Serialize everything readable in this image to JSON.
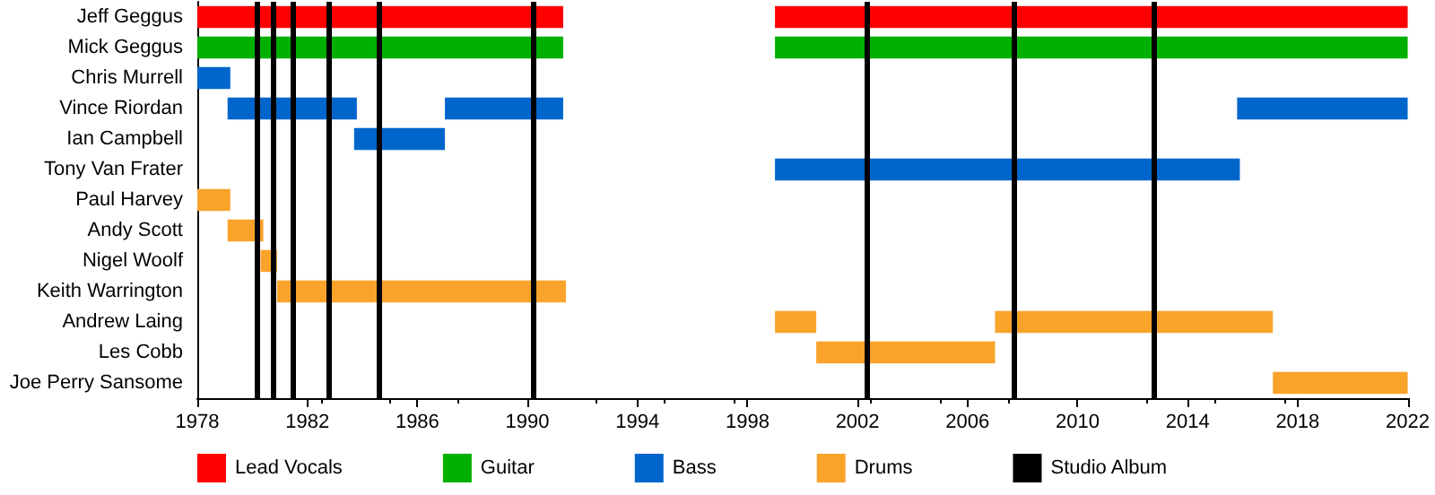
{
  "chart_data": {
    "type": "bar",
    "orientation": "horizontal",
    "categories": [
      "Jeff Geggus",
      "Mick Geggus",
      "Chris Murrell",
      "Vince Riordan",
      "Ian Campbell",
      "Tony Van Frater",
      "Paul Harvey",
      "Andy Scott",
      "Nigel Woolf",
      "Keith Warrington",
      "Andrew Laing",
      "Les Cobb",
      "Joe Perry Sansome"
    ],
    "series": [
      {
        "name": "Lead Vocals",
        "color": "#ff0000",
        "values": [
          13.3,
          null,
          null,
          null,
          null,
          null,
          null,
          null,
          null,
          null,
          null,
          null,
          null
        ],
        "base": [
          1978,
          null,
          null,
          null,
          null,
          null,
          null,
          null,
          null,
          null,
          null,
          null,
          null
        ]
      },
      {
        "color": "#ff0000",
        "values": [
          23,
          null,
          null,
          null,
          null,
          null,
          null,
          null,
          null,
          null,
          null,
          null,
          null
        ],
        "base": [
          1999,
          null,
          null,
          null,
          null,
          null,
          null,
          null,
          null,
          null,
          null,
          null,
          null
        ]
      },
      {
        "name": "Guitar",
        "color": "#00b000",
        "values": [
          null,
          13.3,
          null,
          null,
          null,
          null,
          null,
          null,
          null,
          null,
          null,
          null,
          null
        ],
        "base": [
          null,
          1978,
          null,
          null,
          null,
          null,
          null,
          null,
          null,
          null,
          null,
          null,
          null
        ]
      },
      {
        "color": "#00b000",
        "values": [
          null,
          23,
          null,
          null,
          null,
          null,
          null,
          null,
          null,
          null,
          null,
          null,
          null
        ],
        "base": [
          null,
          1999,
          null,
          null,
          null,
          null,
          null,
          null,
          null,
          null,
          null,
          null,
          null
        ]
      },
      {
        "name": "Bass",
        "color": "#0066cc",
        "values": [
          null,
          null,
          1.2,
          4.7,
          3.3,
          16.9,
          null,
          null,
          null,
          null,
          null,
          null,
          null
        ],
        "base": [
          null,
          null,
          1978,
          1979.1,
          1983.7,
          1999,
          null,
          null,
          null,
          null,
          null,
          null,
          null
        ]
      },
      {
        "color": "#0066cc",
        "values": [
          null,
          null,
          null,
          4.3,
          null,
          null,
          null,
          null,
          null,
          null,
          null,
          null,
          null
        ],
        "base": [
          null,
          null,
          null,
          1987,
          null,
          null,
          null,
          null,
          null,
          null,
          null,
          null,
          null
        ]
      },
      {
        "color": "#0066cc",
        "values": [
          null,
          null,
          null,
          6.2,
          null,
          null,
          null,
          null,
          null,
          null,
          null,
          null,
          null
        ],
        "base": [
          null,
          null,
          null,
          2015.8,
          null,
          null,
          null,
          null,
          null,
          null,
          null,
          null,
          null
        ]
      },
      {
        "name": "Drums",
        "color": "#faa32b",
        "values": [
          null,
          null,
          null,
          null,
          null,
          null,
          1.2,
          1.3,
          0.6,
          10.5,
          1.5,
          6.5,
          4.9
        ],
        "base": [
          null,
          null,
          null,
          null,
          null,
          null,
          1978,
          1979.1,
          1980.3,
          1980.9,
          1999,
          2000.5,
          2017.1
        ]
      },
      {
        "color": "#faa32b",
        "values": [
          null,
          null,
          null,
          null,
          null,
          null,
          null,
          null,
          null,
          null,
          10.1,
          null,
          null
        ],
        "base": [
          null,
          null,
          null,
          null,
          null,
          null,
          null,
          null,
          null,
          null,
          2007,
          null,
          null
        ]
      }
    ],
    "ref_lines": [
      {
        "axis": "x",
        "value": 1980.15,
        "label": "Studio Album",
        "color": "#000000"
      },
      {
        "axis": "x",
        "value": 1980.75,
        "color": "#000000"
      },
      {
        "axis": "x",
        "value": 1981.45,
        "color": "#000000"
      },
      {
        "axis": "x",
        "value": 1982.8,
        "color": "#000000"
      },
      {
        "axis": "x",
        "value": 1984.6,
        "color": "#000000"
      },
      {
        "axis": "x",
        "value": 1990.2,
        "color": "#000000"
      },
      {
        "axis": "x",
        "value": 2002.35,
        "color": "#000000"
      },
      {
        "axis": "x",
        "value": 2007.7,
        "color": "#000000"
      },
      {
        "axis": "x",
        "value": 2012.8,
        "color": "#000000"
      }
    ],
    "xlim": [
      1978,
      2022
    ],
    "xticks": [
      1978,
      1982,
      1986,
      1990,
      1994,
      1998,
      2002,
      2006,
      2010,
      2014,
      2018,
      2022
    ],
    "grid": false,
    "legend": "bottom"
  }
}
